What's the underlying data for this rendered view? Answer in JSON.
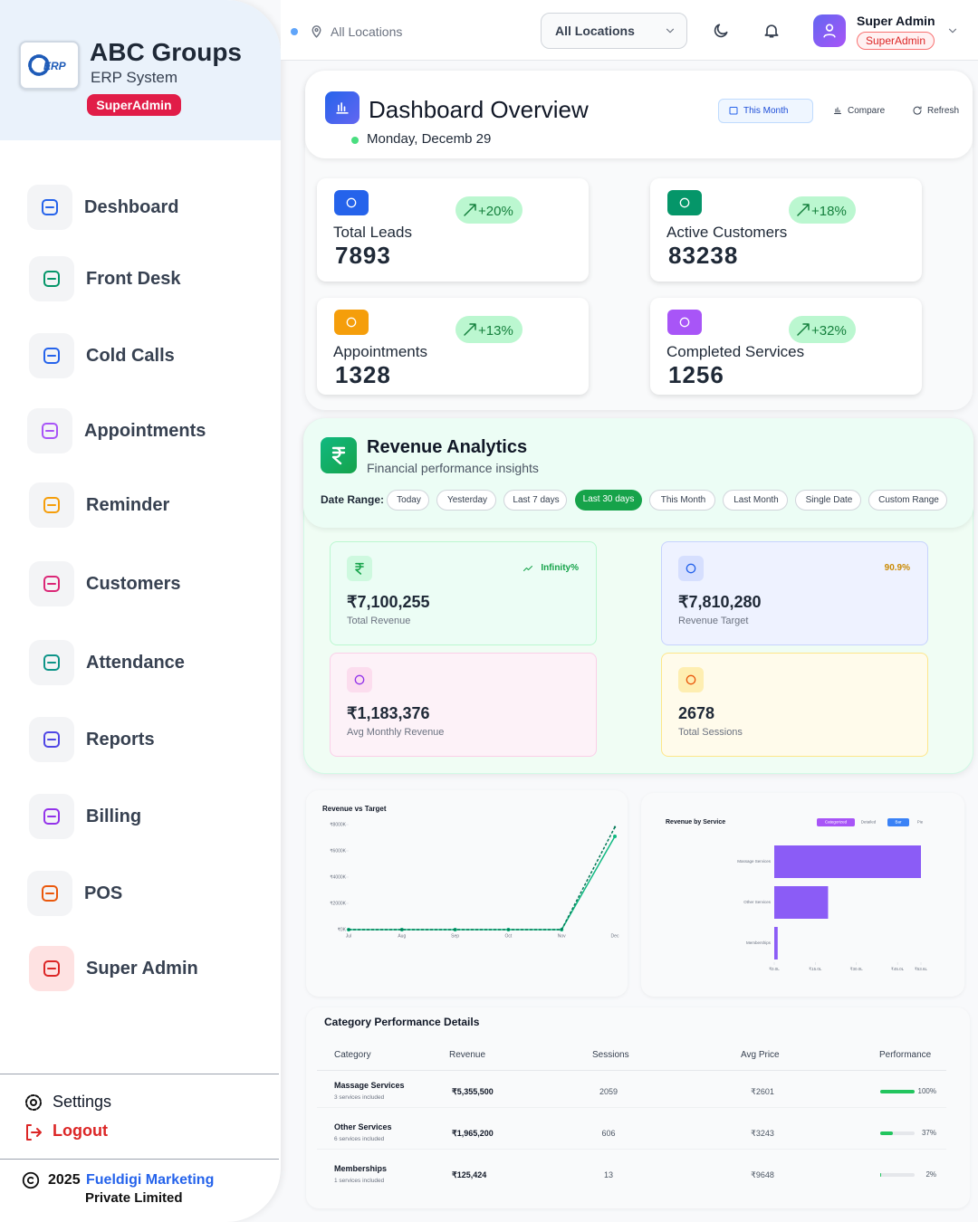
{
  "sidebar": {
    "brand": {
      "logo": "ERP",
      "title": "ABC Groups",
      "subtitle": "ERP System",
      "badge": "SuperAdmin"
    },
    "nav": [
      "Deshboard",
      "Front Desk",
      "Cold Calls",
      "Appointments",
      "Reminder",
      "Customers",
      "Attendance",
      "Reports",
      "Billing",
      "POS",
      "Super Admin"
    ],
    "settings": "Settings",
    "logout": "Logout",
    "copyright": {
      "year": "2025",
      "company": "Fueldigi Marketing",
      "suffix": "Private Limited"
    }
  },
  "topbar": {
    "location": "All Locations",
    "location_select": "All Locations",
    "user": {
      "name": "Super Admin",
      "role": "SuperAdmin"
    }
  },
  "overview": {
    "title": "Dashboard Overview",
    "date": "Monday, Decemb 29",
    "actions": [
      "This Month",
      "Compare",
      "Refresh"
    ],
    "stats": [
      {
        "label": "Total Leads",
        "value": 7893,
        "change": "+20%"
      },
      {
        "label": "Active Customers",
        "value": 83238,
        "change": "+18%"
      },
      {
        "label": "Appointments",
        "value": 1328,
        "change": "+13%"
      },
      {
        "label": "Completed Services",
        "value": 1256,
        "change": "+32%"
      }
    ]
  },
  "revenue": {
    "title": "Revenue Analytics",
    "subtitle": "Financial performance insights",
    "date_range_label": "Date Range:",
    "ranges": [
      {
        "label": "Today"
      },
      {
        "label": "Yesterday"
      },
      {
        "label": "Last 7 days"
      },
      {
        "label": "Last 30 days",
        "active": true
      },
      {
        "label": "This Month"
      },
      {
        "label": "Last Month"
      },
      {
        "label": "Single Date"
      },
      {
        "label": "Custom Range"
      }
    ],
    "cards": [
      {
        "value": "₹7,100,255",
        "label": "Total Revenue",
        "badge": "Infinity%"
      },
      {
        "value": "₹7,810,280",
        "label": "Revenue Target",
        "badge": "90.9%"
      },
      {
        "value": "₹1,183,376",
        "label": "Avg Monthly Revenue"
      },
      {
        "value": 2678,
        "label": "Total Sessions"
      }
    ]
  },
  "revenue_vs_target": {
    "type": "line",
    "title": "Revenue vs Target",
    "categories": [
      "Jul",
      "Aug",
      "Sep",
      "Oct",
      "Nov",
      "Dec"
    ],
    "series": [
      {
        "color": "#10b981",
        "values": [
          0,
          0,
          0,
          0,
          0,
          7100255
        ]
      },
      {
        "color": "#047857",
        "dashed": true,
        "values": [
          0,
          0,
          0,
          0,
          0,
          7810280
        ]
      }
    ],
    "ylim": [
      0,
      8000000
    ],
    "yticks": [
      {
        "value": 0,
        "label": "₹0K"
      },
      {
        "value": 2000000,
        "label": "₹2000K"
      },
      {
        "value": 4000000,
        "label": "₹4000K"
      },
      {
        "value": 6000000,
        "label": "₹6000K"
      },
      {
        "value": 8000000,
        "label": "₹8000K"
      }
    ]
  },
  "revenue_by_service": {
    "type": "bar",
    "orientation": "horizontal",
    "title": "Revenue by Service",
    "toggles": [
      "Categorized",
      "Detailed",
      "Bar",
      "Pie"
    ],
    "categories": [
      "Massage Services",
      "Other Services",
      "Memberships"
    ],
    "values": [
      5355500,
      1965200,
      125424
    ],
    "color": "#8b5cf6",
    "xlim": [
      0,
      5355500
    ],
    "xticks": [
      {
        "value": 0,
        "label": "₹0.0L"
      },
      {
        "value": 1500000,
        "label": "₹15.0L"
      },
      {
        "value": 3000000,
        "label": "₹30.0L"
      },
      {
        "value": 4500000,
        "label": "₹45.0L"
      },
      {
        "value": 5355500,
        "label": "₹53.6L"
      }
    ]
  },
  "category_table": {
    "title": "Category Performance Details",
    "headers": [
      "Category",
      "Revenue",
      "Sessions",
      "Avg Price",
      "Performance"
    ],
    "rows": [
      {
        "category": "Massage Services",
        "note": "3 services included",
        "revenue": "₹5,355,500",
        "sessions": 2059,
        "avg_price": "₹2601",
        "performance": 100,
        "performance_label": "100%"
      },
      {
        "category": "Other Services",
        "note": "6 services included",
        "revenue": "₹1,965,200",
        "sessions": 606,
        "avg_price": "₹3243",
        "performance": 37,
        "performance_label": "37%"
      },
      {
        "category": "Memberships",
        "note": "1 services included",
        "revenue": "₹125,424",
        "sessions": 13,
        "avg_price": "₹9648",
        "performance": 2,
        "performance_label": "2%"
      }
    ]
  }
}
